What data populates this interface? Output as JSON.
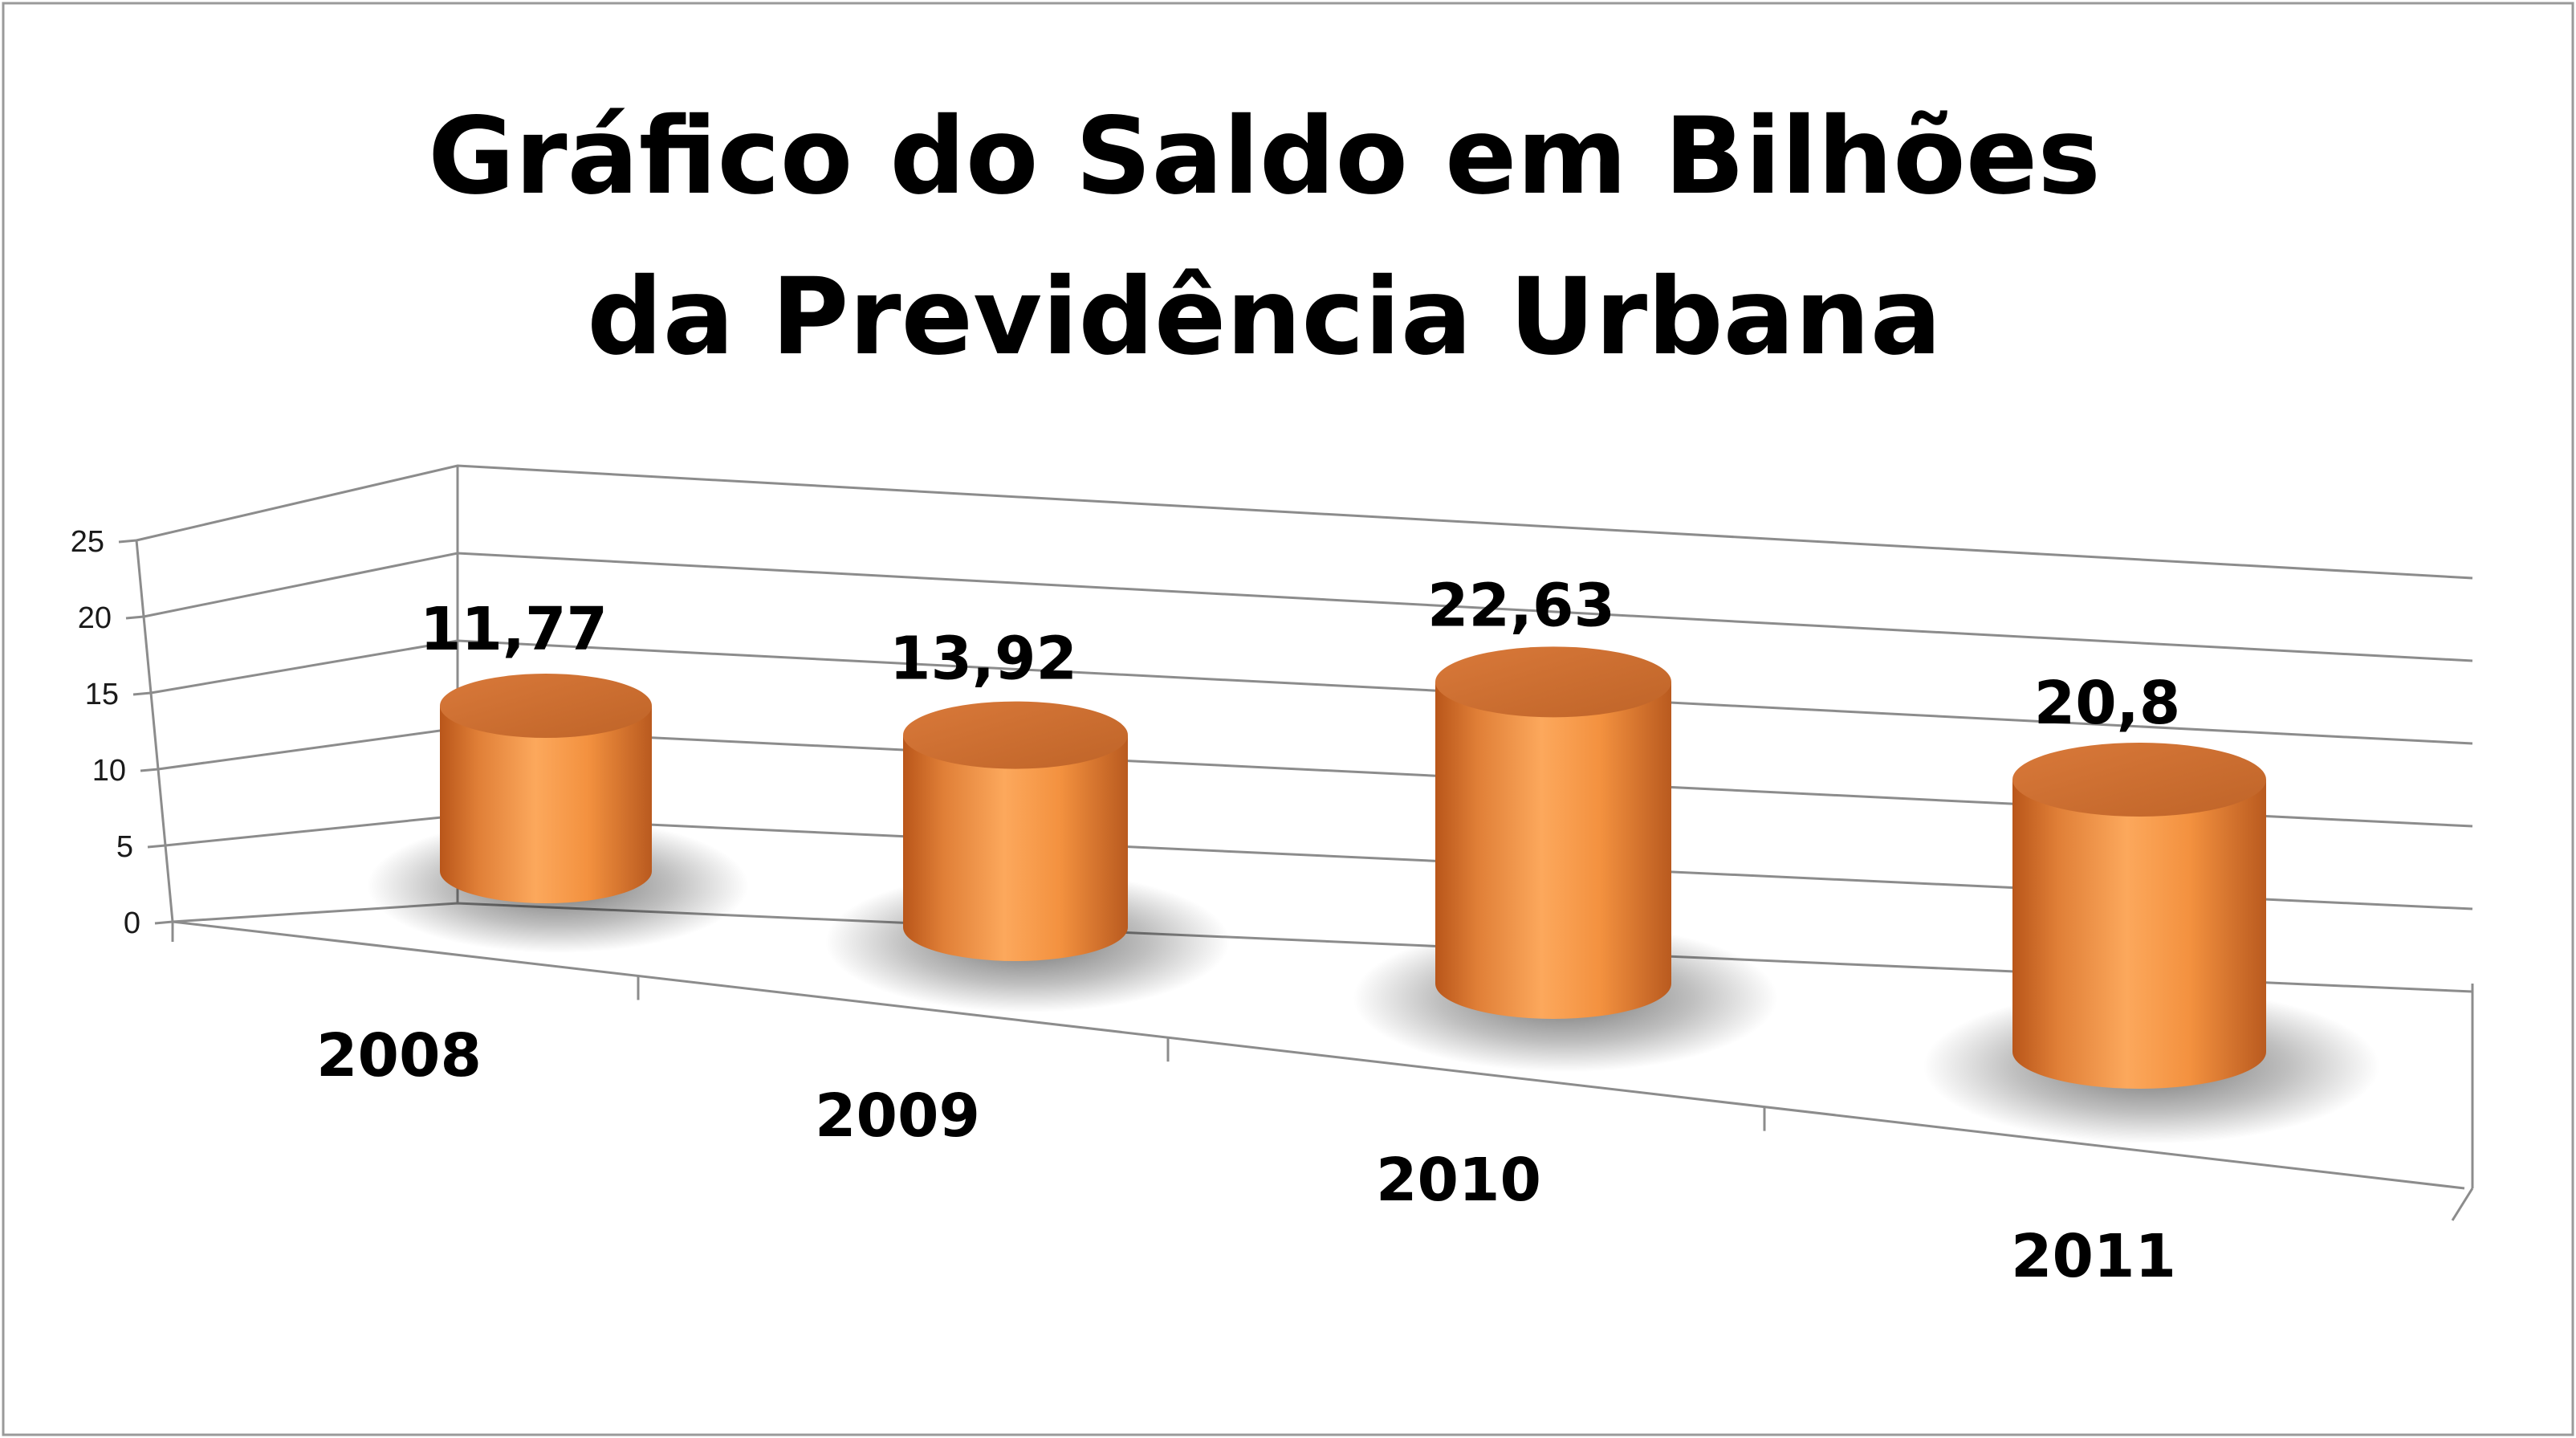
{
  "chart_data": {
    "type": "bar",
    "style": "3d-cylinder",
    "title_lines": [
      "Gráfico do Saldo em Bilhões",
      "da Previdência Urbana"
    ],
    "categories": [
      "2008",
      "2009",
      "2010",
      "2011"
    ],
    "values": [
      11.77,
      13.92,
      22.63,
      20.8
    ],
    "data_labels": [
      "11,77",
      "13,92",
      "22,63",
      "20,8"
    ],
    "yticks": [
      "0",
      "5",
      "10",
      "15",
      "20",
      "25"
    ],
    "ylim": [
      0,
      25
    ],
    "grid": true,
    "legend": "none",
    "colors": {
      "bar": "#F79646",
      "bar_dark": "#C8642A",
      "grid": "#8c8c8c"
    }
  }
}
